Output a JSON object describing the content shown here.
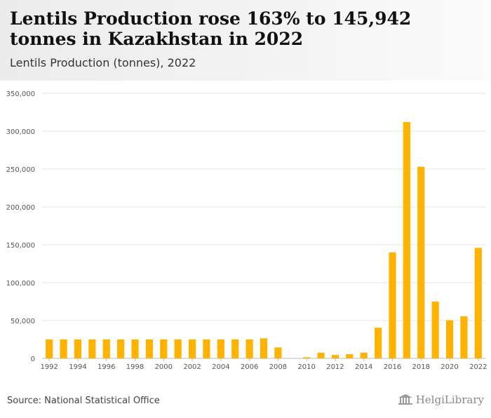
{
  "header": {
    "title": "Lentils Production rose 163% to 145,942 tonnes in Kazakhstan in 2022",
    "subtitle": "Lentils Production (tonnes), 2022"
  },
  "footer": {
    "source": "Source: National Statistical Office",
    "brand": "HelgiLibrary"
  },
  "colors": {
    "bar": "#FFB200",
    "grid": "#e6e6e6",
    "axis_text": "#555555"
  },
  "chart_data": {
    "type": "bar",
    "title": "Lentils Production rose 163% to 145,942 tonnes in Kazakhstan in 2022",
    "subtitle": "Lentils Production (tonnes), 2022",
    "xlabel": "",
    "ylabel": "",
    "ylim": [
      0,
      350000
    ],
    "yticks": [
      0,
      50000,
      100000,
      150000,
      200000,
      250000,
      300000,
      350000
    ],
    "ytick_labels": [
      "0",
      "50,000",
      "100,000",
      "150,000",
      "200,000",
      "250,000",
      "300,000",
      "350,000"
    ],
    "grid": true,
    "categories": [
      "1992",
      "1993",
      "1994",
      "1995",
      "1996",
      "1997",
      "1998",
      "1999",
      "2000",
      "2001",
      "2002",
      "2003",
      "2004",
      "2005",
      "2006",
      "2007",
      "2008",
      "2009",
      "2010",
      "2011",
      "2012",
      "2013",
      "2014",
      "2015",
      "2016",
      "2017",
      "2018",
      "2019",
      "2020",
      "2021",
      "2022"
    ],
    "xtick_labels": [
      "1992",
      "1994",
      "1996",
      "1998",
      "2000",
      "2002",
      "2004",
      "2006",
      "2008",
      "2010",
      "2012",
      "2014",
      "2016",
      "2018",
      "2020",
      "2022"
    ],
    "values": [
      25000,
      25000,
      25000,
      25000,
      25000,
      25000,
      25000,
      25000,
      25000,
      25000,
      25000,
      25000,
      25000,
      25000,
      25000,
      26500,
      14500,
      0,
      1500,
      7500,
      4500,
      5500,
      7500,
      40500,
      140000,
      312000,
      253000,
      75000,
      50500,
      55500,
      145942
    ]
  }
}
